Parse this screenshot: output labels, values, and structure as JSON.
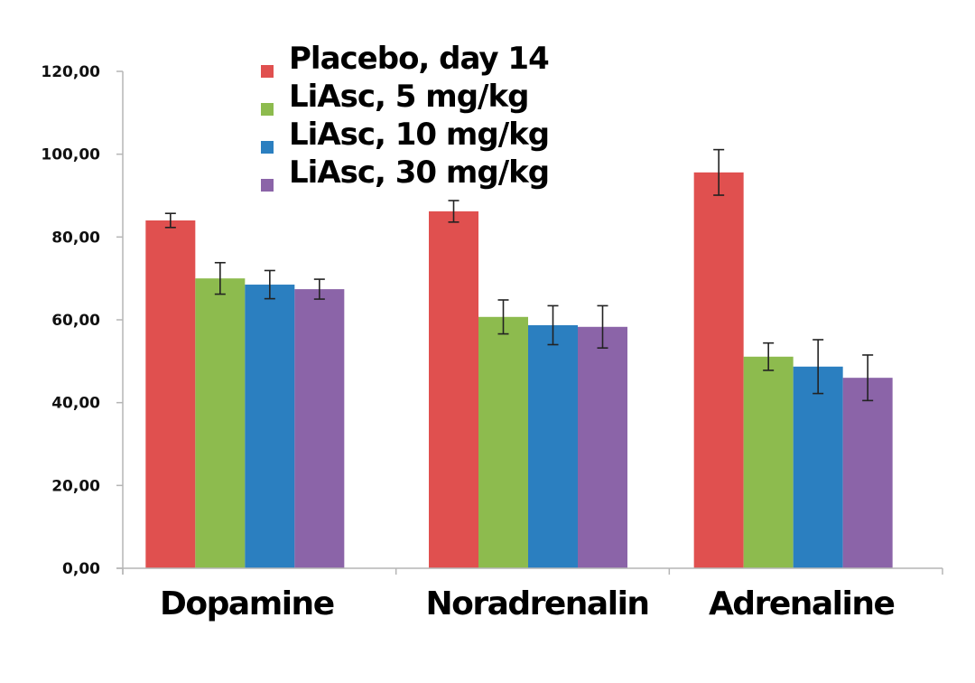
{
  "chart_data": {
    "type": "bar",
    "title": "",
    "xlabel": "",
    "ylabel": "",
    "ylim": [
      0,
      120
    ],
    "yticks": [
      0,
      20,
      40,
      60,
      80,
      100,
      120
    ],
    "ytick_labels": [
      "0,00",
      "20,00",
      "40,00",
      "60,00",
      "80,00",
      "100,00",
      "120,00"
    ],
    "grid": false,
    "legend_position": "top-center",
    "categories": [
      "Dopamine",
      "Noradrenalin",
      "Adrenaline"
    ],
    "series": [
      {
        "name": "Placebo, day 14",
        "color": "#E0504F",
        "values": [
          84.0,
          86.2,
          95.6
        ],
        "errors": [
          1.7,
          2.6,
          5.5
        ]
      },
      {
        "name": "LiAsc, 5 mg/kg",
        "color": "#8DBB4E",
        "values": [
          70.0,
          60.7,
          51.1
        ],
        "errors": [
          3.8,
          4.1,
          3.3
        ]
      },
      {
        "name": "LiAsc, 10 mg/kg",
        "color": "#2B7FC0",
        "values": [
          68.5,
          58.7,
          48.7
        ],
        "errors": [
          3.4,
          4.7,
          6.5
        ]
      },
      {
        "name": "LiAsc, 30 mg/kg",
        "color": "#8B64A8",
        "values": [
          67.4,
          58.3,
          46.0
        ],
        "errors": [
          2.4,
          5.1,
          5.5
        ]
      }
    ]
  }
}
